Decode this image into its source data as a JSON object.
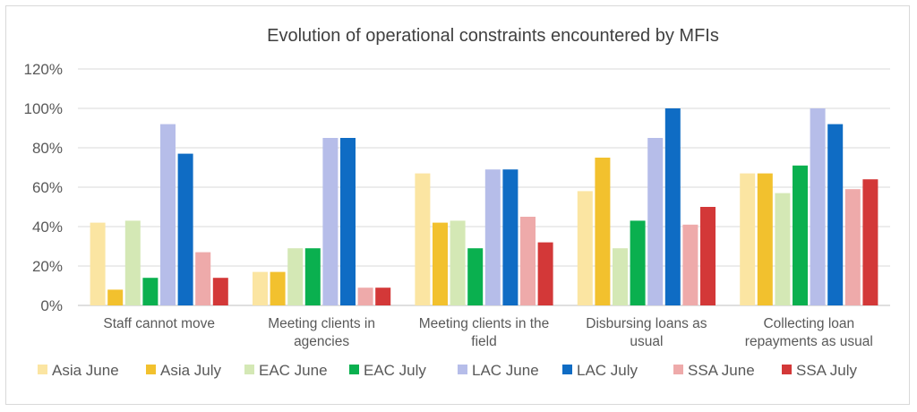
{
  "chart_data": {
    "type": "bar",
    "title": "Evolution of operational constraints encountered by MFIs",
    "xlabel": "",
    "ylabel": "",
    "ylim": [
      0,
      120
    ],
    "y_ticks": [
      "0%",
      "20%",
      "40%",
      "60%",
      "80%",
      "100%",
      "120%"
    ],
    "grid": true,
    "legend_position": "bottom",
    "categories": [
      [
        "Staff cannot move"
      ],
      [
        "Meeting clients in",
        "agencies"
      ],
      [
        "Meeting clients in the",
        "field"
      ],
      [
        "Disbursing loans as",
        "usual"
      ],
      [
        "Collecting loan",
        "repayments as usual"
      ]
    ],
    "series": [
      {
        "name": "Asia June",
        "color": "#fbe5a2",
        "values": [
          42,
          17,
          67,
          58,
          67
        ]
      },
      {
        "name": "Asia July",
        "color": "#f2c12e",
        "values": [
          8,
          17,
          42,
          75,
          67
        ]
      },
      {
        "name": "EAC June",
        "color": "#d4e8b5",
        "values": [
          43,
          29,
          43,
          29,
          57
        ]
      },
      {
        "name": "EAC July",
        "color": "#0ab04f",
        "values": [
          14,
          29,
          29,
          43,
          71
        ]
      },
      {
        "name": "LAC June",
        "color": "#b6bde9",
        "values": [
          92,
          85,
          69,
          85,
          100
        ]
      },
      {
        "name": "LAC July",
        "color": "#0f6cc4",
        "values": [
          77,
          85,
          69,
          100,
          92
        ]
      },
      {
        "name": "SSA June",
        "color": "#eeaaaa",
        "values": [
          27,
          9,
          45,
          41,
          59
        ]
      },
      {
        "name": "SSA July",
        "color": "#d33838",
        "values": [
          14,
          9,
          32,
          50,
          64
        ]
      }
    ]
  }
}
